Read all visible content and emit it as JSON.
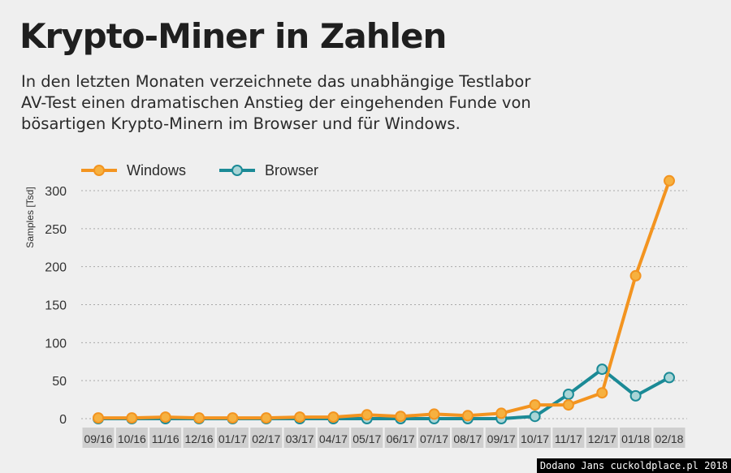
{
  "header": {
    "title": "Krypto-Miner in Zahlen",
    "subtitle_lines": [
      "In den letzten Monaten verzeichnete das unabhängige Testlabor",
      "AV-Test einen dramatischen Anstieg der eingehenden Funde von",
      "bösartigen Krypto-Minern im Browser und für Windows."
    ]
  },
  "watermark": "Dodano Jans cuckoldplace.pl 2018",
  "chart_data": {
    "type": "line",
    "title": "Krypto-Miner in Zahlen",
    "ylabel": "Samples [Tsd]",
    "xlabel": "",
    "ylim": [
      0,
      300
    ],
    "yticks": [
      0,
      50,
      100,
      150,
      200,
      250,
      300
    ],
    "grid": true,
    "legend_position": "top-left",
    "categories": [
      "09/16",
      "10/16",
      "11/16",
      "12/16",
      "01/17",
      "02/17",
      "03/17",
      "04/17",
      "05/17",
      "06/17",
      "07/17",
      "08/17",
      "09/17",
      "10/17",
      "11/17",
      "12/17",
      "01/18",
      "02/18"
    ],
    "series": [
      {
        "name": "Windows",
        "color": "#f39420",
        "values": [
          1,
          1,
          2,
          1,
          1,
          1,
          2,
          2,
          5,
          3,
          6,
          4,
          7,
          18,
          18,
          34,
          188,
          313
        ]
      },
      {
        "name": "Browser",
        "color": "#1b8a96",
        "values": [
          0,
          0,
          0,
          0,
          0,
          0,
          0,
          0,
          0,
          0,
          0,
          0,
          0,
          3,
          32,
          65,
          30,
          54
        ]
      }
    ]
  }
}
